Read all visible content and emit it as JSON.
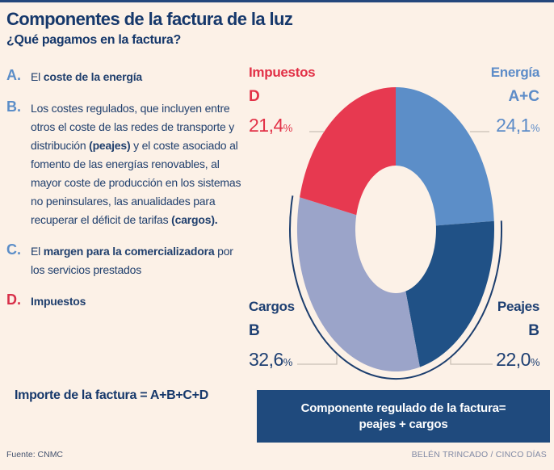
{
  "page": {
    "title": "Componentes de la factura de la luz",
    "subtitle": "¿Qué pagamos en la factura?",
    "formula": "Importe de la factura = A+B+C+D",
    "source": "Fuente: CNMC",
    "credit": "BELÉN TRINCADO / CINCO DÍAS"
  },
  "legend": {
    "items": [
      {
        "letter": "A.",
        "letter_color": "#5c8ec8",
        "segments": [
          {
            "text": "El ",
            "bold": false
          },
          {
            "text": "coste de la energía",
            "bold": true
          }
        ]
      },
      {
        "letter": "B.",
        "letter_color": "#5c8ec8",
        "segments": [
          {
            "text": "Los costes regulados, que incluyen entre otros el coste de las redes de transporte y distribución ",
            "bold": false
          },
          {
            "text": "(peajes)",
            "bold": true
          },
          {
            "text": " y el coste asociado al fomento de las energías renovables, al mayor coste de producción en los sistemas no peninsulares, las anualidades para recuperar el déficit de tarifas ",
            "bold": false
          },
          {
            "text": "(cargos).",
            "bold": true
          }
        ]
      },
      {
        "letter": "C.",
        "letter_color": "#5c8ec8",
        "segments": [
          {
            "text": "El ",
            "bold": false
          },
          {
            "text": "margen para la comercializadora",
            "bold": true
          },
          {
            "text": " por los servicios prestados",
            "bold": false
          }
        ]
      },
      {
        "letter": "D.",
        "letter_color": "#d8304a",
        "segments": [
          {
            "text": "Impuestos",
            "bold": true
          }
        ]
      }
    ]
  },
  "banner": {
    "line1": "Componente regulado de la factura=",
    "line2": "peajes + cargos"
  },
  "chart_data": {
    "type": "pie",
    "subtype": "donut",
    "title": "Componentes de la factura de la luz",
    "percent_sign": "%",
    "outline_color": "#1c3e6e",
    "leader_line_color": "#c9c0b5",
    "background_color": "#fcf1e7",
    "legend_position": "around-donut",
    "segments": [
      {
        "name": "Energía",
        "letter": "A+C",
        "value": 24.1,
        "pct_label": "24,1",
        "color": "#5c8ec8",
        "label_color": "#5d8cc8",
        "side": "top-right",
        "regulated": false
      },
      {
        "name": "Peajes",
        "letter": "B",
        "value": 22.0,
        "pct_label": "22,0",
        "color": "#205186",
        "label_color": "#1d3f72",
        "side": "bottom-right",
        "regulated": true
      },
      {
        "name": "Cargos",
        "letter": "B",
        "value": 32.6,
        "pct_label": "32,6",
        "color": "#9ba4c9",
        "label_color": "#1d3f72",
        "side": "bottom-left",
        "regulated": true
      },
      {
        "name": "Impuestos",
        "letter": "D",
        "value": 21.4,
        "pct_label": "21,4",
        "color": "#e73950",
        "label_color": "#e23147",
        "side": "top-left",
        "regulated": false
      }
    ],
    "annotation": "Componente regulado de la factura= peajes + cargos"
  }
}
